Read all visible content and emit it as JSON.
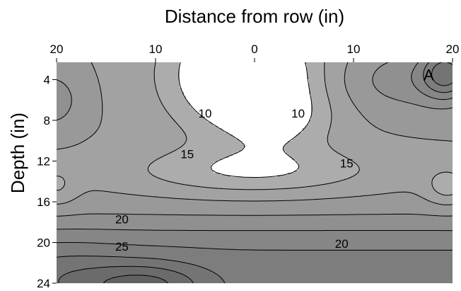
{
  "chart_data": {
    "type": "heatmap",
    "subtype": "filled-contour",
    "title": "",
    "xlabel": "Distance from row (in)",
    "ylabel": "Depth (in)",
    "x_ticks": [
      {
        "value": -20,
        "label": "20"
      },
      {
        "value": -10,
        "label": "10"
      },
      {
        "value": 0,
        "label": "0"
      },
      {
        "value": 10,
        "label": "10"
      },
      {
        "value": 20,
        "label": "20"
      }
    ],
    "y_ticks": [
      {
        "value": 4,
        "label": "4"
      },
      {
        "value": 8,
        "label": "8"
      },
      {
        "value": 12,
        "label": "12"
      },
      {
        "value": 16,
        "label": "16"
      },
      {
        "value": 20,
        "label": "20"
      },
      {
        "value": 24,
        "label": "24"
      }
    ],
    "xlim": [
      -20,
      20
    ],
    "ylim": [
      2.3,
      24
    ],
    "y_inverted": true,
    "x_axis_position": "top",
    "contour_levels": [
      10,
      12.5,
      15,
      17.5,
      20,
      22.5,
      25,
      27.5,
      30,
      32.5,
      35,
      37.5,
      40
    ],
    "contour_labels": [
      {
        "text": "10",
        "x": -5,
        "y": 7.3
      },
      {
        "text": "10",
        "x": 4.4,
        "y": 7.3
      },
      {
        "text": "15",
        "x": -6.8,
        "y": 11.3
      },
      {
        "text": "15",
        "x": 9.3,
        "y": 12.2
      },
      {
        "text": "20",
        "x": -13.4,
        "y": 17.7
      },
      {
        "text": "25",
        "x": -13.4,
        "y": 20.4
      },
      {
        "text": "20",
        "x": 8.8,
        "y": 20.1
      }
    ],
    "annotations": [
      {
        "text": "A",
        "x": 17.6,
        "y": 3.5
      }
    ],
    "colors": {
      "low": "#ffffff",
      "high": "#3c3c3c",
      "line": "#000000"
    }
  }
}
